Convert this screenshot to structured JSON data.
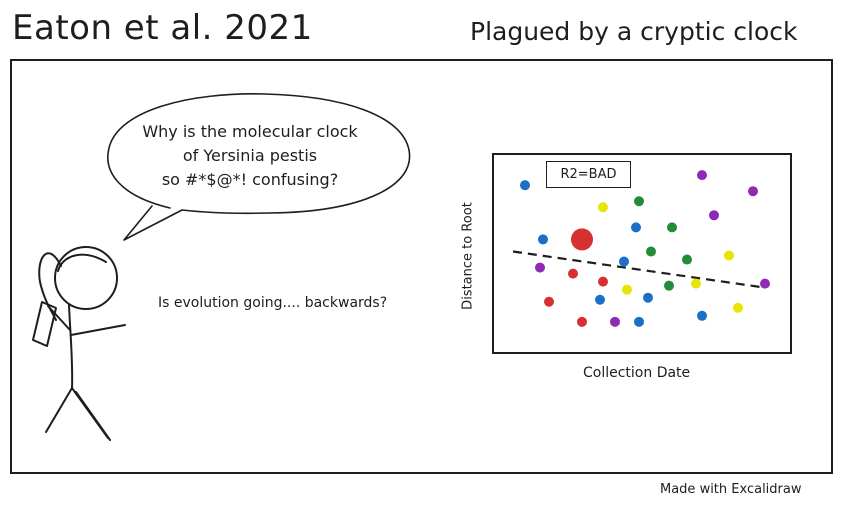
{
  "header": {
    "title": "Eaton et al. 2021",
    "subtitle": "Plagued by a cryptic clock"
  },
  "comic": {
    "speech_lines": [
      "Why is the molecular clock",
      "of Yersinia pestis",
      "so #*$@*! confusing?"
    ],
    "thought": "Is evolution going.... backwards?"
  },
  "chart_data": {
    "type": "scatter",
    "title": "",
    "xlabel": "Collection Date",
    "ylabel": "Distance to Root",
    "annotation": "R2=BAD",
    "xlim": [
      0,
      100
    ],
    "ylim": [
      0,
      100
    ],
    "trend_line": {
      "style": "dashed",
      "x": [
        7,
        91
      ],
      "y": [
        51,
        33
      ]
    },
    "points": [
      {
        "x": 11,
        "y": 84,
        "color": "#1c6fc7",
        "size": 5
      },
      {
        "x": 17,
        "y": 57,
        "color": "#1c6fc7",
        "size": 5
      },
      {
        "x": 16,
        "y": 43,
        "color": "#8e2ab5",
        "size": 5
      },
      {
        "x": 19,
        "y": 26,
        "color": "#d63030",
        "size": 5
      },
      {
        "x": 27,
        "y": 40,
        "color": "#d63030",
        "size": 5
      },
      {
        "x": 30,
        "y": 57,
        "color": "#d63030",
        "size": 11
      },
      {
        "x": 30,
        "y": 16,
        "color": "#d63030",
        "size": 5
      },
      {
        "x": 36,
        "y": 27,
        "color": "#1c6fc7",
        "size": 5
      },
      {
        "x": 37,
        "y": 36,
        "color": "#d63030",
        "size": 5
      },
      {
        "x": 37,
        "y": 73,
        "color": "#e6e600",
        "size": 5
      },
      {
        "x": 41,
        "y": 16,
        "color": "#8e2ab5",
        "size": 5
      },
      {
        "x": 44,
        "y": 46,
        "color": "#1c6fc7",
        "size": 5
      },
      {
        "x": 45,
        "y": 32,
        "color": "#e6e600",
        "size": 5
      },
      {
        "x": 48,
        "y": 63,
        "color": "#1c6fc7",
        "size": 5
      },
      {
        "x": 49,
        "y": 76,
        "color": "#238c3a",
        "size": 5
      },
      {
        "x": 49,
        "y": 16,
        "color": "#1c6fc7",
        "size": 5
      },
      {
        "x": 53,
        "y": 51,
        "color": "#238c3a",
        "size": 5
      },
      {
        "x": 52,
        "y": 28,
        "color": "#1c6fc7",
        "size": 5
      },
      {
        "x": 60,
        "y": 63,
        "color": "#238c3a",
        "size": 5
      },
      {
        "x": 59,
        "y": 34,
        "color": "#238c3a",
        "size": 5
      },
      {
        "x": 65,
        "y": 47,
        "color": "#238c3a",
        "size": 5
      },
      {
        "x": 68,
        "y": 35,
        "color": "#e6e600",
        "size": 5
      },
      {
        "x": 70,
        "y": 19,
        "color": "#1c6fc7",
        "size": 5
      },
      {
        "x": 70,
        "y": 89,
        "color": "#8e2ab5",
        "size": 5
      },
      {
        "x": 74,
        "y": 69,
        "color": "#8e2ab5",
        "size": 5
      },
      {
        "x": 79,
        "y": 49,
        "color": "#e6e600",
        "size": 5
      },
      {
        "x": 82,
        "y": 23,
        "color": "#e6e600",
        "size": 5
      },
      {
        "x": 87,
        "y": 81,
        "color": "#8e2ab5",
        "size": 5
      },
      {
        "x": 91,
        "y": 35,
        "color": "#8e2ab5",
        "size": 5
      }
    ]
  },
  "footer": {
    "credit": "Made with Excalidraw"
  }
}
